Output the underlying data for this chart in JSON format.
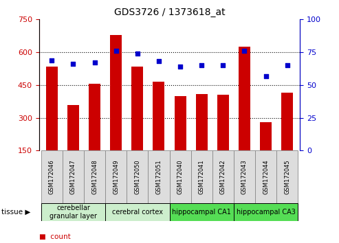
{
  "title": "GDS3726 / 1373618_at",
  "samples": [
    "GSM172046",
    "GSM172047",
    "GSM172048",
    "GSM172049",
    "GSM172050",
    "GSM172051",
    "GSM172040",
    "GSM172041",
    "GSM172042",
    "GSM172043",
    "GSM172044",
    "GSM172045"
  ],
  "counts": [
    535,
    360,
    455,
    680,
    535,
    465,
    400,
    410,
    405,
    625,
    280,
    415
  ],
  "percentiles": [
    69,
    66,
    67,
    76,
    74,
    68,
    64,
    65,
    65,
    76,
    57,
    65
  ],
  "ylim_left": [
    150,
    750
  ],
  "ylim_right": [
    0,
    100
  ],
  "yticks_left": [
    150,
    300,
    450,
    600,
    750
  ],
  "yticks_right": [
    0,
    25,
    50,
    75,
    100
  ],
  "bar_color": "#cc0000",
  "dot_color": "#0000cc",
  "tissue_groups": [
    {
      "label": "cerebellar\ngranular layer",
      "start": 0,
      "end": 3,
      "color": "#cceecc"
    },
    {
      "label": "cerebral cortex",
      "start": 3,
      "end": 6,
      "color": "#cceecc"
    },
    {
      "label": "hippocampal CA1",
      "start": 6,
      "end": 9,
      "color": "#55dd55"
    },
    {
      "label": "hippocampal CA3",
      "start": 9,
      "end": 12,
      "color": "#55dd55"
    }
  ],
  "legend_count_color": "#cc0000",
  "legend_dot_color": "#0000cc",
  "xlabel_color": "#cc0000",
  "right_axis_color": "#0000cc",
  "tick_box_color": "#dddddd",
  "tick_box_edge": "#888888"
}
